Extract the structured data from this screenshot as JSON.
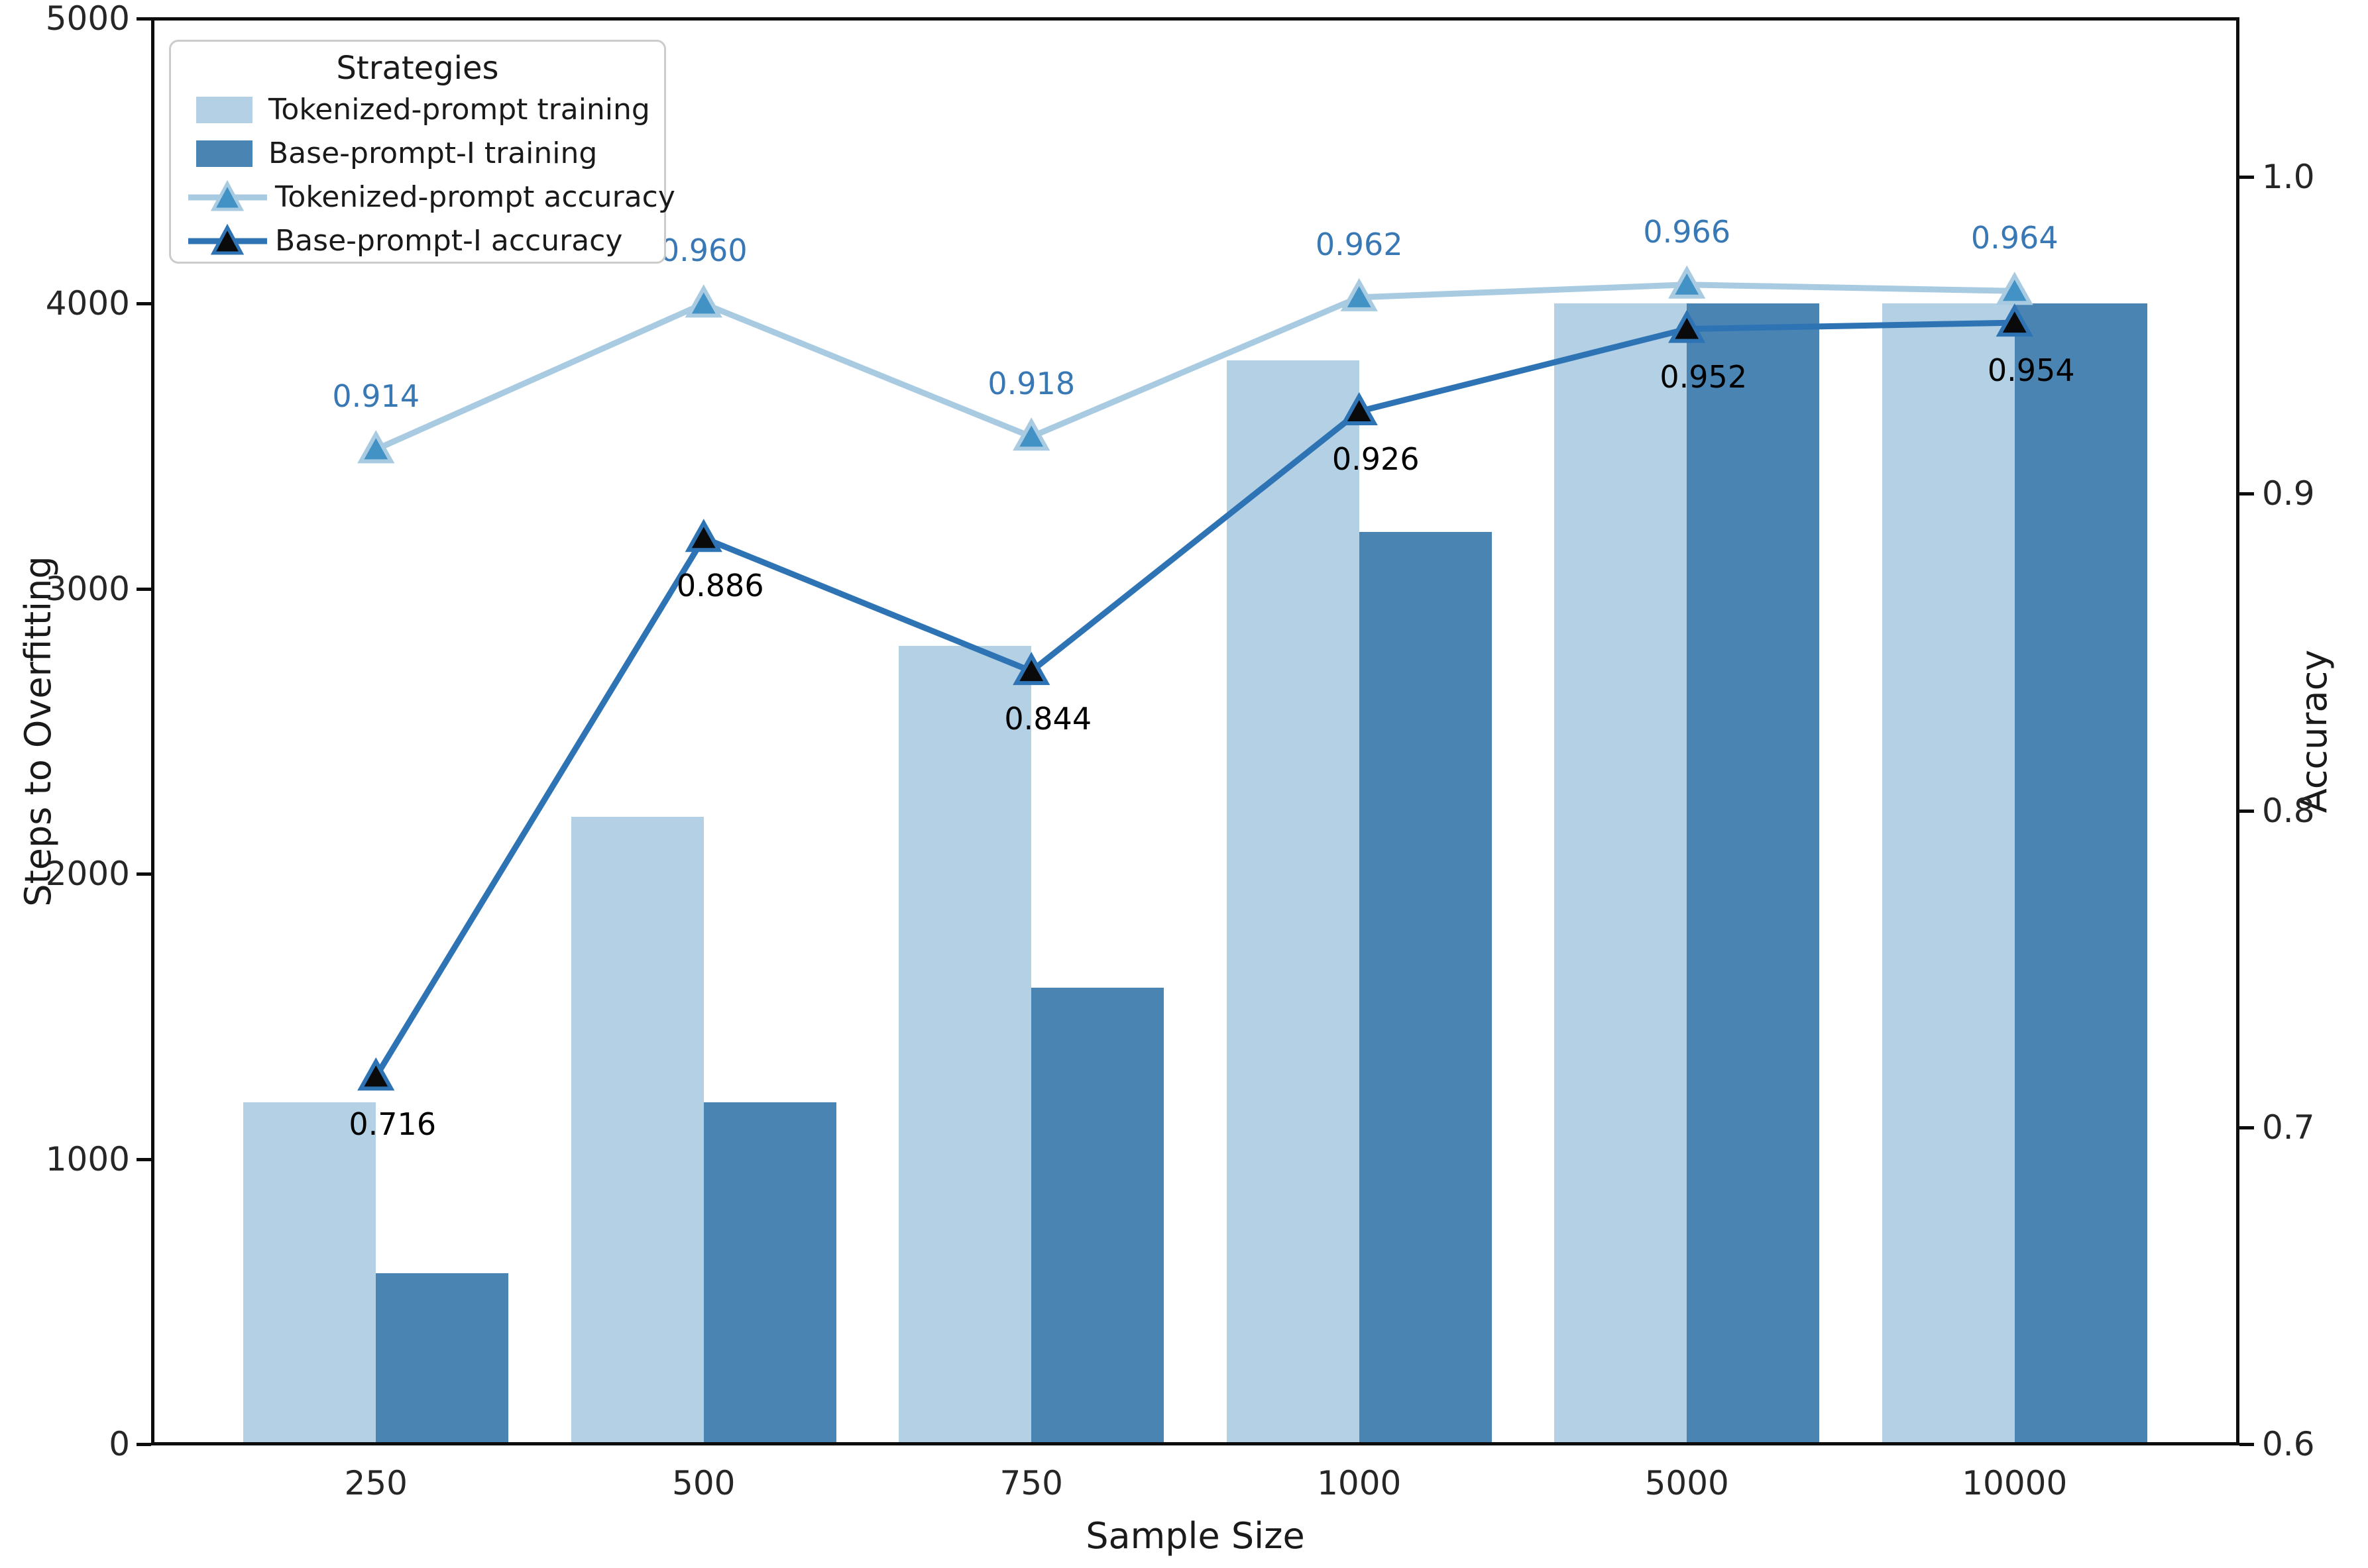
{
  "colors": {
    "background": "#ffffff",
    "spine": "#0d0d0d",
    "tick_text": "#262626",
    "axis_label_text": "#1a1a1a",
    "legend_border": "#cccccc"
  },
  "chart_data": {
    "type": "bar+line-dual-axis",
    "grid": false,
    "legend_position": "upper-left",
    "categories": [
      "250",
      "500",
      "750",
      "1000",
      "5000",
      "10000"
    ],
    "xlabel": "Sample Size",
    "ylabel_left": "Steps to Overfitting",
    "ylabel_right": "Accuracy",
    "ylim_left": [
      0,
      5000
    ],
    "ylim_right": [
      0.6,
      1.05
    ],
    "left_ticks": [
      {
        "v": 0,
        "label": "0"
      },
      {
        "v": 1000,
        "label": "1000"
      },
      {
        "v": 2000,
        "label": "2000"
      },
      {
        "v": 3000,
        "label": "3000"
      },
      {
        "v": 4000,
        "label": "4000"
      },
      {
        "v": 5000,
        "label": "5000"
      }
    ],
    "right_ticks": [
      {
        "v": 0.6,
        "label": "0.6"
      },
      {
        "v": 0.7,
        "label": "0.7"
      },
      {
        "v": 0.8,
        "label": "0.8"
      },
      {
        "v": 0.9,
        "label": "0.9"
      },
      {
        "v": 1.0,
        "label": "1.0"
      }
    ],
    "bar_series": [
      {
        "name": "Tokenized-prompt training",
        "color": "#b3d0e4",
        "values": [
          1200,
          2200,
          2800,
          3800,
          4000,
          4000
        ]
      },
      {
        "name": "Base-prompt-I training",
        "color": "#4a84b2",
        "values": [
          600,
          1200,
          1600,
          3200,
          4000,
          4000
        ]
      }
    ],
    "line_series": [
      {
        "name": "Tokenized-prompt accuracy",
        "line_color": "#a8cbe2",
        "marker_color": "#4292c6",
        "marker_edge": "#a8cbe2",
        "label_color": "#3878b4",
        "label_position": "above",
        "values": [
          0.914,
          0.96,
          0.918,
          0.962,
          0.966,
          0.964
        ],
        "labels": [
          "0.914",
          "0.960",
          "0.918",
          "0.962",
          "0.966",
          "0.964"
        ]
      },
      {
        "name": "Base-prompt-I accuracy",
        "line_color": "#2e74b5",
        "marker_color": "#0a0a0a",
        "marker_edge": "#2e74b5",
        "label_color": "#000000",
        "label_position": "below",
        "values": [
          0.716,
          0.886,
          0.844,
          0.926,
          0.952,
          0.954
        ],
        "labels": [
          "0.716",
          "0.886",
          "0.844",
          "0.926",
          "0.952",
          "0.954"
        ]
      }
    ],
    "legend": {
      "title": "Strategies"
    }
  }
}
